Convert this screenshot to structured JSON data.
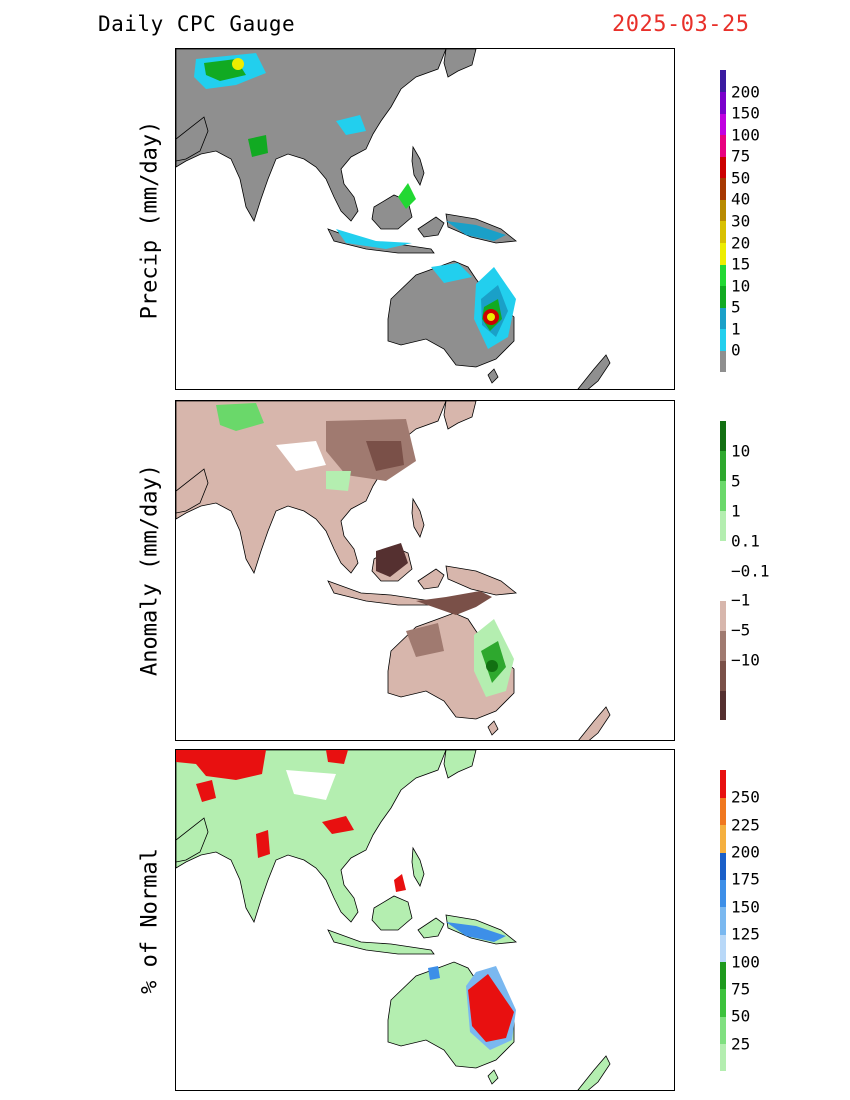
{
  "header": {
    "title": "Daily CPC Gauge",
    "date": "2025-03-25",
    "date_color": "#e8302a"
  },
  "panels": [
    {
      "id": "precip",
      "ylabel": "Precip (mm/day)",
      "land_color": "#8f8f8f",
      "colorbar": {
        "labels": [
          "200",
          "150",
          "100",
          "75",
          "50",
          "40",
          "30",
          "20",
          "15",
          "10",
          "5",
          "1",
          "0"
        ],
        "colors": [
          "#8f8f8f",
          "#22cfee",
          "#1aa0c8",
          "#11aa22",
          "#22d833",
          "#eded00",
          "#d8c000",
          "#b88a00",
          "#a63800",
          "#cc0000",
          "#e80080",
          "#c000e0",
          "#7a00cc",
          "#3a1aa0"
        ]
      },
      "features": [
        {
          "name": "northeast-australia-rain-core",
          "color": "#cc0000"
        },
        {
          "name": "tibet-rain",
          "color": "#eded00"
        },
        {
          "name": "borneo-rain",
          "color": "#22d833"
        }
      ]
    },
    {
      "id": "anomaly",
      "ylabel": "Anomaly (mm/day)",
      "land_color": "#d7b6ac",
      "colorbar": {
        "labels": [
          "10",
          "5",
          "1",
          "0.1",
          "−0.1",
          "−1",
          "−5",
          "−10"
        ],
        "colors": [
          "#553030",
          "#7a5048",
          "#a07a70",
          "#d7b6ac",
          "#ffffff",
          "#ffffff",
          "#b4eeb0",
          "#6ad86a",
          "#2ea82e",
          "#127012"
        ]
      },
      "features": [
        {
          "name": "north-china-dry",
          "color": "#a07a70"
        },
        {
          "name": "queensland-wet",
          "color": "#2ea82e"
        }
      ]
    },
    {
      "id": "percent",
      "ylabel": "% of Normal",
      "land_color": "#b4eeb0",
      "colorbar": {
        "labels": [
          "250",
          "225",
          "200",
          "175",
          "150",
          "125",
          "100",
          "75",
          "50",
          "25"
        ],
        "colors": [
          "#b4eeb0",
          "#80e080",
          "#3cc23c",
          "#1e9a1e",
          "#b8d8f8",
          "#7ab8f0",
          "#3d8fe8",
          "#1a5fc8",
          "#f5b040",
          "#f07820",
          "#e81010"
        ]
      },
      "features": [
        {
          "name": "queensland-above-normal",
          "color": "#e81010"
        },
        {
          "name": "tibet-above-normal",
          "color": "#e81010"
        }
      ]
    }
  ]
}
